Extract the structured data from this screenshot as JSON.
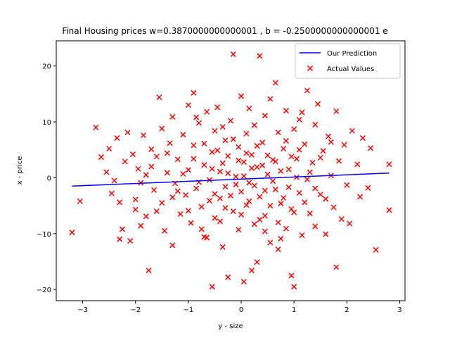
{
  "chart_data": {
    "type": "scatter",
    "title": "Final Housing prices w=0.3870000000000001 , b = -0.2500000000000001 e",
    "xlabel": "y - size",
    "ylabel": "x - price",
    "xlim": [
      -3.5,
      3.1
    ],
    "ylim": [
      -22,
      24.5
    ],
    "xticks": [
      -3,
      -2,
      -1,
      0,
      1,
      2,
      3
    ],
    "yticks": [
      -20,
      -10,
      0,
      10,
      20
    ],
    "grid": false,
    "legend_position": "top-right",
    "line": {
      "name": "Our Prediction",
      "color": "#0000ff",
      "x": [
        -3.2,
        2.8
      ],
      "y": [
        -1.488,
        0.8336
      ]
    },
    "scatter": {
      "name": "Actual Values",
      "color": "#ff0000",
      "marker": "x",
      "points": [
        [
          -3.2,
          -9.8
        ],
        [
          -3.05,
          -4.2
        ],
        [
          -2.75,
          9.0
        ],
        [
          -2.65,
          3.7
        ],
        [
          -2.55,
          1.0
        ],
        [
          -2.5,
          5.2
        ],
        [
          -2.45,
          -2.8
        ],
        [
          -2.4,
          -0.5
        ],
        [
          -2.35,
          7.1
        ],
        [
          -2.3,
          -4.4
        ],
        [
          -2.3,
          -11.0
        ],
        [
          -2.25,
          -9.2
        ],
        [
          -2.2,
          2.9
        ],
        [
          -2.15,
          8.1
        ],
        [
          -2.1,
          -11.3
        ],
        [
          -2.05,
          4.2
        ],
        [
          -2.0,
          -3.9
        ],
        [
          -1.95,
          1.6
        ],
        [
          -1.9,
          -8.6
        ],
        [
          -1.85,
          7.6
        ],
        [
          -1.8,
          0.5
        ],
        [
          -1.8,
          -6.9
        ],
        [
          -1.75,
          -16.6
        ],
        [
          -1.7,
          5.1
        ],
        [
          -1.65,
          -2.2
        ],
        [
          -1.6,
          3.8
        ],
        [
          -1.55,
          14.4
        ],
        [
          -1.5,
          -4.5
        ],
        [
          -1.5,
          8.8
        ],
        [
          -1.45,
          -9.5
        ],
        [
          -1.4,
          0.9
        ],
        [
          -1.35,
          6.2
        ],
        [
          -1.3,
          -12.1
        ],
        [
          -1.3,
          10.9
        ],
        [
          -1.25,
          -1.0
        ],
        [
          -1.2,
          3.3
        ],
        [
          -1.15,
          -6.5
        ],
        [
          -1.1,
          7.7
        ],
        [
          -1.05,
          -3.1
        ],
        [
          -1.0,
          13.0
        ],
        [
          -1.0,
          1.4
        ],
        [
          -0.95,
          -8.1
        ],
        [
          -0.9,
          5.8
        ],
        [
          -0.9,
          15.2
        ],
        [
          -0.85,
          -1.9
        ],
        [
          -0.8,
          9.8
        ],
        [
          -0.75,
          -5.2
        ],
        [
          -0.7,
          2.3
        ],
        [
          -0.7,
          -10.6
        ],
        [
          -0.65,
          11.8
        ],
        [
          -0.6,
          -0.4
        ],
        [
          -0.55,
          4.6
        ],
        [
          -0.55,
          -19.5
        ],
        [
          -0.5,
          -7.2
        ],
        [
          -0.5,
          8.4
        ],
        [
          -0.45,
          12.6
        ],
        [
          -0.4,
          1.1
        ],
        [
          -0.4,
          -3.7
        ],
        [
          -0.35,
          -12.4
        ],
        [
          -0.3,
          6.7
        ],
        [
          -0.3,
          -1.6
        ],
        [
          -0.25,
          3.9
        ],
        [
          -0.25,
          -17.8
        ],
        [
          -0.2,
          10.2
        ],
        [
          -0.15,
          -6.0
        ],
        [
          -0.15,
          22.1
        ],
        [
          -0.1,
          0.2
        ],
        [
          -0.05,
          -9.3
        ],
        [
          -0.05,
          5.5
        ],
        [
          0.0,
          14.6
        ],
        [
          0.0,
          -2.5
        ],
        [
          0.05,
          2.8
        ],
        [
          0.05,
          -18.6
        ],
        [
          0.1,
          -4.9
        ],
        [
          0.1,
          7.9
        ],
        [
          0.15,
          12.4
        ],
        [
          0.15,
          -0.9
        ],
        [
          0.2,
          -16.6
        ],
        [
          0.2,
          4.1
        ],
        [
          0.25,
          -8.3
        ],
        [
          0.25,
          9.4
        ],
        [
          0.3,
          1.9
        ],
        [
          0.3,
          -15.1
        ],
        [
          0.35,
          21.8
        ],
        [
          0.35,
          -3.4
        ],
        [
          0.4,
          6.3
        ],
        [
          0.45,
          -6.8
        ],
        [
          0.45,
          11.1
        ],
        [
          0.5,
          0.6
        ],
        [
          0.55,
          -11.6
        ],
        [
          0.55,
          14.1
        ],
        [
          0.6,
          3.2
        ],
        [
          0.65,
          -2.1
        ],
        [
          0.65,
          17.0
        ],
        [
          0.7,
          8.1
        ],
        [
          0.7,
          -12.8
        ],
        [
          0.75,
          -4.6
        ],
        [
          0.8,
          5.2
        ],
        [
          0.85,
          -9.1
        ],
        [
          0.85,
          12.0
        ],
        [
          0.9,
          1.5
        ],
        [
          0.95,
          -17.5
        ],
        [
          0.95,
          -5.6
        ],
        [
          1.0,
          8.7
        ],
        [
          1.0,
          -19.5
        ],
        [
          1.05,
          3.4
        ],
        [
          1.1,
          -2.7
        ],
        [
          1.15,
          11.7
        ],
        [
          1.15,
          -10.3
        ],
        [
          1.2,
          6.0
        ],
        [
          1.25,
          -0.3
        ],
        [
          1.25,
          15.6
        ],
        [
          1.3,
          -6.4
        ],
        [
          1.35,
          2.7
        ],
        [
          1.4,
          9.5
        ],
        [
          1.4,
          -8.7
        ],
        [
          1.45,
          13.2
        ],
        [
          1.5,
          -3.0
        ],
        [
          1.55,
          4.8
        ],
        [
          1.6,
          -10.1
        ],
        [
          1.65,
          7.4
        ],
        [
          1.7,
          0.4
        ],
        [
          1.75,
          -5.3
        ],
        [
          1.8,
          11.9
        ],
        [
          1.8,
          -16.0
        ],
        [
          1.85,
          3.0
        ],
        [
          1.9,
          -7.4
        ],
        [
          1.95,
          5.9
        ],
        [
          2.0,
          -1.3
        ],
        [
          2.05,
          -8.2
        ],
        [
          2.1,
          8.4
        ],
        [
          2.2,
          2.4
        ],
        [
          2.25,
          -3.4
        ],
        [
          2.3,
          7.1
        ],
        [
          2.4,
          -1.8
        ],
        [
          2.45,
          5.3
        ],
        [
          2.55,
          -12.9
        ],
        [
          2.8,
          -5.8
        ],
        [
          2.8,
          2.4
        ],
        [
          -1.2,
          -2.4
        ],
        [
          -1.1,
          0.7
        ],
        [
          -1.0,
          -5.9
        ],
        [
          -0.9,
          3.4
        ],
        [
          -0.8,
          -0.8
        ],
        [
          -0.75,
          -9.2
        ],
        [
          -0.7,
          6.1
        ],
        [
          -0.6,
          -4.1
        ],
        [
          -0.55,
          1.6
        ],
        [
          -0.5,
          -2.9
        ],
        [
          -0.45,
          4.9
        ],
        [
          -0.4,
          -7.8
        ],
        [
          -0.35,
          2.6
        ],
        [
          -0.3,
          -5.4
        ],
        [
          -0.25,
          0.8
        ],
        [
          -0.2,
          -3.2
        ],
        [
          -0.15,
          6.9
        ],
        [
          -0.1,
          -1.2
        ],
        [
          -0.05,
          3.1
        ],
        [
          0.0,
          -6.6
        ],
        [
          0.05,
          0.3
        ],
        [
          0.1,
          4.4
        ],
        [
          0.15,
          -4.2
        ],
        [
          0.2,
          1.7
        ],
        [
          0.25,
          -1.4
        ],
        [
          0.3,
          5.7
        ],
        [
          0.35,
          -7.5
        ],
        [
          0.4,
          2.2
        ],
        [
          0.45,
          -2.3
        ],
        [
          0.5,
          4.0
        ],
        [
          0.55,
          -5.0
        ],
        [
          0.6,
          -0.6
        ],
        [
          0.65,
          2.9
        ],
        [
          0.7,
          -8.0
        ],
        [
          0.75,
          1.2
        ],
        [
          0.8,
          -3.6
        ],
        [
          0.85,
          6.6
        ],
        [
          0.9,
          -1.7
        ],
        [
          0.95,
          3.8
        ],
        [
          1.0,
          -6.2
        ],
        [
          1.05,
          0.1
        ],
        [
          1.1,
          5.0
        ],
        [
          1.2,
          -4.4
        ],
        [
          1.3,
          1.0
        ],
        [
          1.4,
          -1.9
        ],
        [
          1.5,
          3.6
        ],
        [
          1.6,
          -3.8
        ],
        [
          1.7,
          6.4
        ],
        [
          -1.6,
          -6.0
        ],
        [
          -1.4,
          4.4
        ],
        [
          -1.3,
          -3.5
        ],
        [
          -1.7,
          2.0
        ],
        [
          -1.9,
          -0.9
        ],
        [
          -2.0,
          -5.7
        ],
        [
          -0.65,
          -10.7
        ],
        [
          -0.35,
          9.1
        ],
        [
          0.45,
          -9.6
        ],
        [
          0.75,
          -10.9
        ],
        [
          1.1,
          10.4
        ],
        [
          -0.85,
          10.8
        ]
      ]
    }
  }
}
